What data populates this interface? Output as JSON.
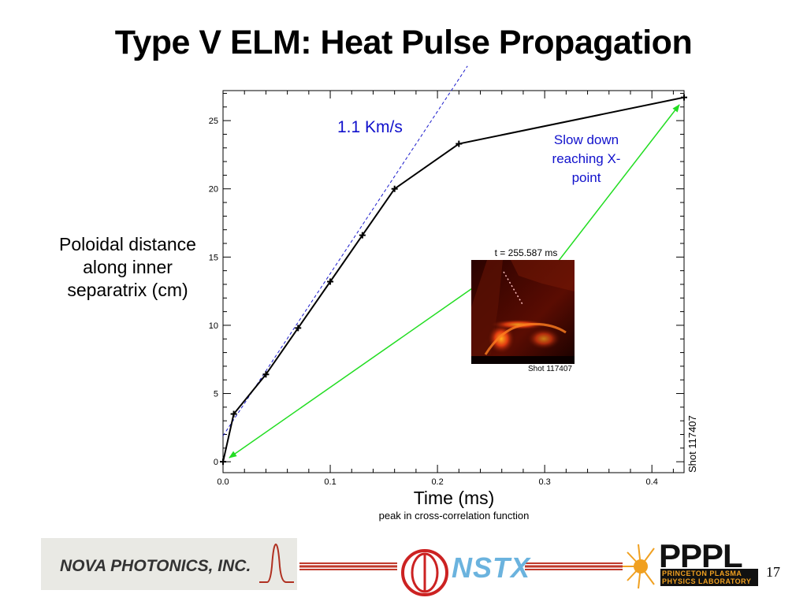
{
  "slide": {
    "title": "Type V ELM: Heat Pulse Propagation",
    "y_label": "Poloidal distance along inner separatrix (cm)",
    "x_label": "Time (ms)",
    "x_sublabel": "peak in cross-correlation function",
    "shot_label": "Shot 117407",
    "page_number": "17"
  },
  "annotations": {
    "speed": "1.1 Km/s",
    "slowdown": "Slow down reaching X-point",
    "inset_time": "t = 255.587 ms",
    "inset_shot": "Shot 117407"
  },
  "logos": {
    "nova": "NOVA PHOTONICS, INC.",
    "nstx": "NSTX",
    "pppl": "PPPL",
    "pppl_sub": "PRINCETON PLASMA PHYSICS LABORATORY"
  },
  "colors": {
    "fit_line": "#1a1acc",
    "arrow": "#22dd22",
    "annotation_text": "#1111cc",
    "data_line": "#000000"
  },
  "chart_data": {
    "type": "line",
    "x": [
      0.0,
      0.01,
      0.04,
      0.07,
      0.1,
      0.13,
      0.16,
      0.22,
      0.43
    ],
    "y": [
      0.0,
      3.5,
      6.4,
      9.8,
      13.2,
      16.6,
      20.0,
      23.3,
      26.7
    ],
    "xlim": [
      0.0,
      0.43
    ],
    "ylim": [
      -0.8,
      27.2
    ],
    "x_ticks": [
      "0.0",
      "0.1",
      "0.2",
      "0.3",
      "0.4"
    ],
    "x_tick_values": [
      0.0,
      0.1,
      0.2,
      0.3,
      0.4
    ],
    "y_ticks": [
      "0",
      "5",
      "10",
      "15",
      "20",
      "25"
    ],
    "y_tick_values": [
      0,
      5,
      10,
      15,
      20,
      25
    ],
    "fit_line": {
      "x": [
        0.0,
        0.228
      ],
      "y": [
        1.9,
        29.0
      ],
      "style": "dashed"
    },
    "grid": false
  }
}
